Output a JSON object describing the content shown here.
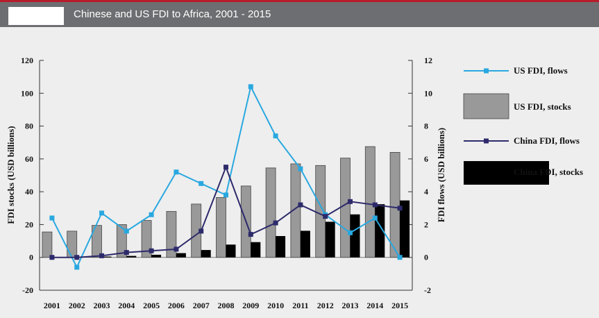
{
  "header": {
    "title": "Chinese and US FDI to Africa, 2001 - 2015"
  },
  "chart_data": {
    "type": "bar",
    "title": "Chinese and US FDI to Africa, 2001 - 2015",
    "categories": [
      "2001",
      "2002",
      "2003",
      "2004",
      "2005",
      "2006",
      "2007",
      "2008",
      "2009",
      "2010",
      "2011",
      "2012",
      "2013",
      "2014",
      "2015"
    ],
    "ylabel": "FDI stocks (USD billions)",
    "y2label": "FDI flows (USD billions)",
    "ylim": [
      -20,
      120
    ],
    "y2lim": [
      -2,
      12
    ],
    "yticks": [
      "-20",
      "0",
      "20",
      "40",
      "60",
      "80",
      "100",
      "120"
    ],
    "y2ticks": [
      "-2",
      "0",
      "2",
      "4",
      "6",
      "8",
      "10",
      "12"
    ],
    "legend_position": "right",
    "grid": false,
    "series": [
      {
        "name": "US FDI, flows",
        "type": "line",
        "axis": "right",
        "color": "#29a8e0",
        "values": [
          2.4,
          -0.6,
          2.7,
          1.6,
          2.6,
          5.2,
          4.5,
          3.8,
          10.4,
          7.4,
          5.4,
          2.6,
          1.5,
          2.4,
          0.0
        ]
      },
      {
        "name": "US FDI, stocks",
        "type": "bar",
        "axis": "left",
        "color": "#999999",
        "values": [
          15.5,
          16,
          19.5,
          20,
          22.5,
          28,
          32.5,
          36.5,
          43.5,
          54.5,
          57,
          56,
          60.5,
          67.5,
          64
        ]
      },
      {
        "name": "China FDI, flows",
        "type": "line",
        "axis": "right",
        "color": "#2d2a6b",
        "values": [
          0.0,
          0.0,
          0.1,
          0.3,
          0.4,
          0.5,
          1.6,
          5.5,
          1.4,
          2.1,
          3.2,
          2.5,
          3.4,
          3.2,
          3.0
        ]
      },
      {
        "name": "China FDI, stocks",
        "type": "bar",
        "axis": "left",
        "color": "#000000",
        "values": [
          0.3,
          0.4,
          0.5,
          0.9,
          1.6,
          2.6,
          4.5,
          7.8,
          9.3,
          13,
          16.2,
          21.7,
          26.2,
          32.4,
          34.7
        ]
      }
    ]
  }
}
